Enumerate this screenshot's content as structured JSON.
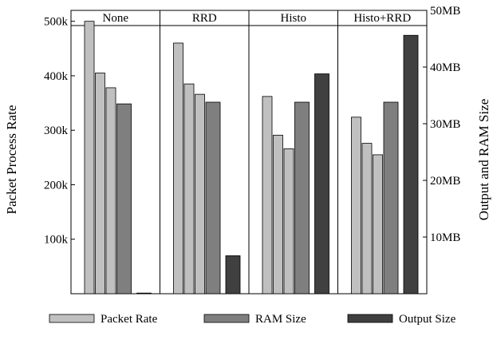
{
  "chart_data": {
    "type": "bar",
    "ylabel_left": "Packet Process Rate",
    "ylabel_right": "Output and RAM Size",
    "left_axis": {
      "ylim": [
        0,
        520000
      ],
      "ticks": [
        100000,
        200000,
        300000,
        400000,
        500000
      ],
      "tick_labels": [
        "100k",
        "200k",
        "300k",
        "400k",
        "500k"
      ]
    },
    "right_axis": {
      "ylim": [
        0,
        50
      ],
      "ticks": [
        10,
        20,
        30,
        40,
        50
      ],
      "tick_labels": [
        "10MB",
        "20MB",
        "30MB",
        "40MB",
        "50MB"
      ]
    },
    "panels": [
      {
        "title": "None",
        "packet_rate": [
          500000,
          405000,
          378000
        ],
        "ram_size_mb": 33.5,
        "output_size_mb": 0
      },
      {
        "title": "RRD",
        "packet_rate": [
          460000,
          385000,
          366000
        ],
        "ram_size_mb": 33.8,
        "output_size_mb": 6.7
      },
      {
        "title": "Histo",
        "packet_rate": [
          362000,
          291000,
          266000
        ],
        "ram_size_mb": 33.8,
        "output_size_mb": 38.8
      },
      {
        "title": "Histo+RRD",
        "packet_rate": [
          324000,
          276000,
          255000
        ],
        "ram_size_mb": 33.8,
        "output_size_mb": 45.6
      }
    ],
    "legend": [
      {
        "name": "Packet Rate",
        "color": "#c0c0c0"
      },
      {
        "name": "RAM Size",
        "color": "#7f7f7f"
      },
      {
        "name": "Output Size",
        "color": "#404040"
      }
    ],
    "legend_position": "bottom"
  },
  "colors": {
    "packet_rate": "#c0c0c0",
    "ram_size": "#7f7f7f",
    "output_size": "#404040"
  }
}
